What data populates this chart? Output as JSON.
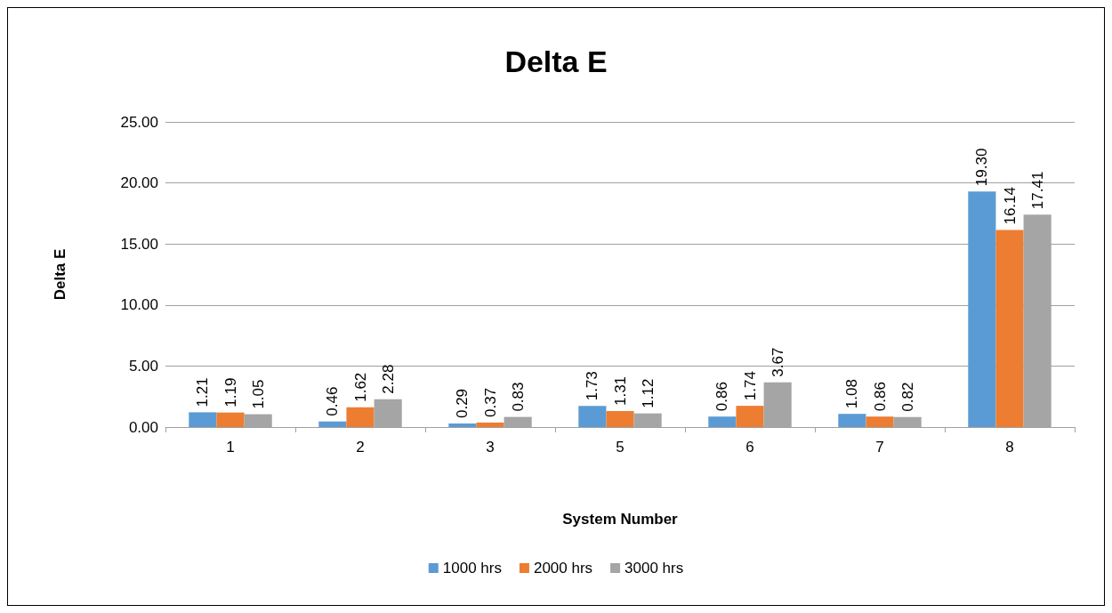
{
  "chart_data": {
    "type": "bar",
    "title": "Delta E",
    "xlabel": "System Number",
    "ylabel": "Delta E",
    "categories": [
      "1",
      "2",
      "3",
      "5",
      "6",
      "7",
      "8"
    ],
    "series": [
      {
        "name": "1000 hrs",
        "color": "#5b9bd5",
        "values": [
          1.21,
          0.46,
          0.29,
          1.73,
          0.86,
          1.08,
          19.3
        ],
        "value_labels": [
          "1.21",
          "0.46",
          "0.29",
          "1.73",
          "0.86",
          "1.08",
          "19.30"
        ]
      },
      {
        "name": "2000 hrs",
        "color": "#ed7d31",
        "values": [
          1.19,
          1.62,
          0.37,
          1.31,
          1.74,
          0.86,
          16.14
        ],
        "value_labels": [
          "1.19",
          "1.62",
          "0.37",
          "1.31",
          "1.74",
          "0.86",
          "16.14"
        ]
      },
      {
        "name": "3000 hrs",
        "color": "#a5a5a5",
        "values": [
          1.05,
          2.28,
          0.83,
          1.12,
          3.67,
          0.82,
          17.41
        ],
        "value_labels": [
          "1.05",
          "2.28",
          "0.83",
          "1.12",
          "3.67",
          "0.82",
          "17.41"
        ]
      }
    ],
    "ylim": [
      0,
      25
    ],
    "yticks": [
      {
        "value": 0,
        "label": "0.00"
      },
      {
        "value": 5,
        "label": "5.00"
      },
      {
        "value": 10,
        "label": "10.00"
      },
      {
        "value": 15,
        "label": "15.00"
      },
      {
        "value": 20,
        "label": "20.00"
      },
      {
        "value": 25,
        "label": "25.00"
      }
    ],
    "grid": "y",
    "legend": "bottom"
  }
}
